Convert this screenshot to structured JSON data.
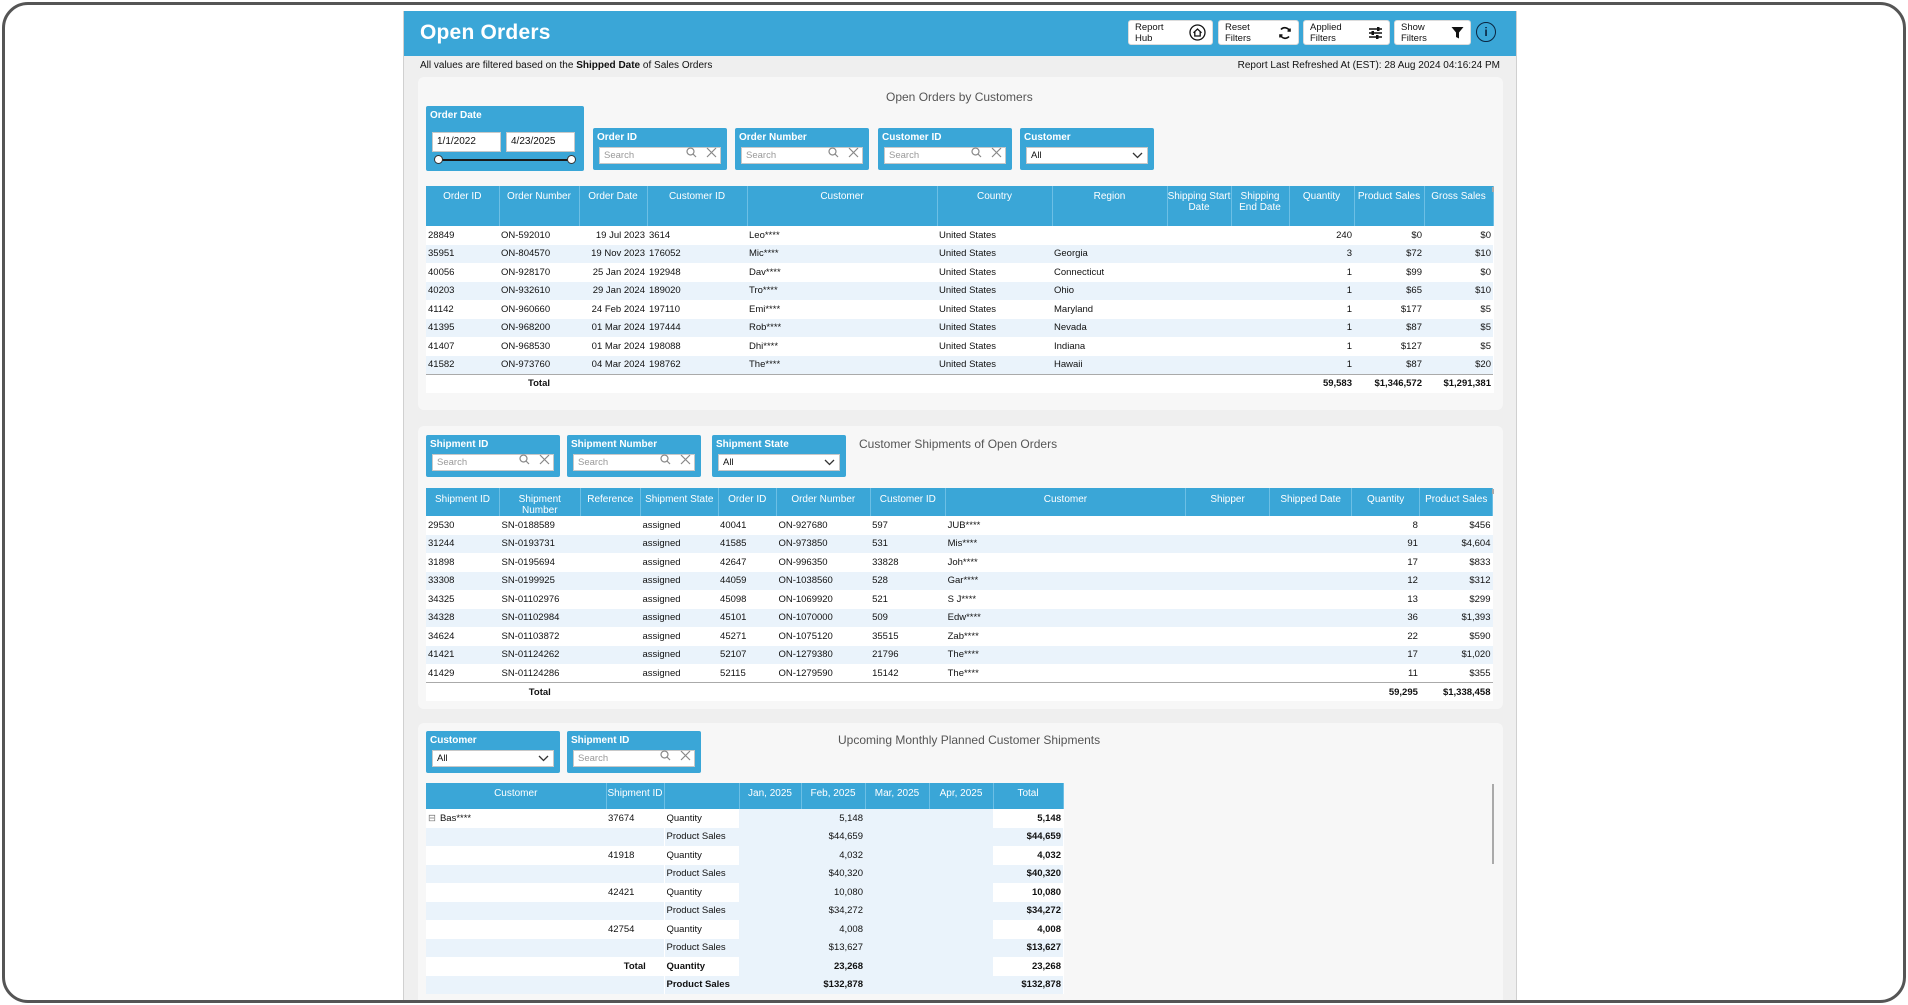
{
  "header": {
    "title": "Open Orders",
    "buttons": {
      "report_hub": "Report Hub",
      "reset_filters": "Reset Filters",
      "applied_filters": "Applied Filters",
      "show_filters": "Show Filters"
    },
    "info_glyph": "i"
  },
  "subheader": {
    "prefix": "All values are filtered based on the",
    "bold": "Shipped Date",
    "suffix": "of Sales Orders",
    "refreshed": "Report Last Refreshed At (EST): 28 Aug 2024 04:16:24 PM"
  },
  "orders_panel": {
    "title": "Open Orders by Customers",
    "slicers": {
      "order_date": {
        "label": "Order Date",
        "from": "1/1/2022",
        "to": "4/23/2025"
      },
      "order_id": {
        "label": "Order ID",
        "placeholder": "Search"
      },
      "order_number": {
        "label": "Order Number",
        "placeholder": "Search"
      },
      "customer_id": {
        "label": "Customer ID",
        "placeholder": "Search"
      },
      "customer": {
        "label": "Customer",
        "value": "All"
      }
    },
    "columns": [
      "Order ID",
      "Order Number",
      "Order Date",
      "Customer ID",
      "Customer",
      "Country",
      "Region",
      "Shipping Start Date",
      "Shipping End Date",
      "Quantity",
      "Product Sales",
      "Gross Sales"
    ],
    "rows": [
      [
        "28849",
        "ON-592010",
        "19 Jul 2023",
        "3614",
        "Leo****",
        "United States",
        "",
        "",
        "",
        "240",
        "$0",
        "$0"
      ],
      [
        "35951",
        "ON-804570",
        "19 Nov 2023",
        "176052",
        "Mic****",
        "United States",
        "Georgia",
        "",
        "",
        "3",
        "$72",
        "$10"
      ],
      [
        "40056",
        "ON-928170",
        "25 Jan 2024",
        "192948",
        "Dav****",
        "United States",
        "Connecticut",
        "",
        "",
        "1",
        "$99",
        "$0"
      ],
      [
        "40203",
        "ON-932610",
        "29 Jan 2024",
        "189020",
        "Tro****",
        "United States",
        "Ohio",
        "",
        "",
        "1",
        "$65",
        "$10"
      ],
      [
        "41142",
        "ON-960660",
        "24 Feb 2024",
        "197110",
        "Emi****",
        "United States",
        "Maryland",
        "",
        "",
        "1",
        "$177",
        "$5"
      ],
      [
        "41395",
        "ON-968200",
        "01 Mar 2024",
        "197444",
        "Rob****",
        "United States",
        "Nevada",
        "",
        "",
        "1",
        "$87",
        "$5"
      ],
      [
        "41407",
        "ON-968530",
        "01 Mar 2024",
        "198088",
        "Dhi****",
        "United States",
        "Indiana",
        "",
        "",
        "1",
        "$127",
        "$5"
      ],
      [
        "41582",
        "ON-973760",
        "04 Mar 2024",
        "198762",
        "The****",
        "United States",
        "Hawaii",
        "",
        "",
        "1",
        "$87",
        "$20"
      ]
    ],
    "total": {
      "label": "Total",
      "quantity": "59,583",
      "product_sales": "$1,346,572",
      "gross_sales": "$1,291,381"
    }
  },
  "shipments_panel": {
    "title": "Customer Shipments of Open Orders",
    "slicers": {
      "shipment_id": {
        "label": "Shipment ID",
        "placeholder": "Search"
      },
      "shipment_number": {
        "label": "Shipment Number",
        "placeholder": "Search"
      },
      "shipment_state": {
        "label": "Shipment State",
        "value": "All"
      }
    },
    "columns": [
      "Shipment ID",
      "Shipment Number",
      "Reference",
      "Shipment State",
      "Order ID",
      "Order Number",
      "Customer ID",
      "Customer",
      "Shipper",
      "Shipped Date",
      "Quantity",
      "Product Sales"
    ],
    "rows": [
      [
        "29530",
        "SN-0188589",
        "",
        "assigned",
        "40041",
        "ON-927680",
        "597",
        "JUB****",
        "",
        "",
        "8",
        "$456"
      ],
      [
        "31244",
        "SN-0193731",
        "",
        "assigned",
        "41585",
        "ON-973850",
        "531",
        "Mis****",
        "",
        "",
        "91",
        "$4,604"
      ],
      [
        "31898",
        "SN-0195694",
        "",
        "assigned",
        "42647",
        "ON-996350",
        "33828",
        "Joh****",
        "",
        "",
        "17",
        "$833"
      ],
      [
        "33308",
        "SN-0199925",
        "",
        "assigned",
        "44059",
        "ON-1038560",
        "528",
        "Gar****",
        "",
        "",
        "12",
        "$312"
      ],
      [
        "34325",
        "SN-01102976",
        "",
        "assigned",
        "45098",
        "ON-1069920",
        "521",
        "S J****",
        "",
        "",
        "13",
        "$299"
      ],
      [
        "34328",
        "SN-01102984",
        "",
        "assigned",
        "45101",
        "ON-1070000",
        "509",
        "Edw****",
        "",
        "",
        "36",
        "$1,393"
      ],
      [
        "34624",
        "SN-01103872",
        "",
        "assigned",
        "45271",
        "ON-1075120",
        "35515",
        "Zab****",
        "",
        "",
        "22",
        "$590"
      ],
      [
        "41421",
        "SN-01124262",
        "",
        "assigned",
        "52107",
        "ON-1279380",
        "21796",
        "The****",
        "",
        "",
        "17",
        "$1,020"
      ],
      [
        "41429",
        "SN-01124286",
        "",
        "assigned",
        "52115",
        "ON-1279590",
        "15142",
        "The****",
        "",
        "",
        "11",
        "$355"
      ]
    ],
    "total": {
      "label": "Total",
      "quantity": "59,295",
      "product_sales": "$1,338,458"
    }
  },
  "planned_panel": {
    "title": "Upcoming Monthly Planned Customer Shipments",
    "slicers": {
      "customer": {
        "label": "Customer",
        "value": "All"
      },
      "shipment_id": {
        "label": "Shipment ID",
        "placeholder": "Search"
      }
    },
    "columns": [
      "Customer",
      "Shipment ID",
      "",
      "Jan, 2025",
      "Feb, 2025",
      "Mar, 2025",
      "Apr, 2025",
      "Total"
    ],
    "customer": "Bas****",
    "expand_glyph": "⊟",
    "rows": [
      [
        "37674",
        "Quantity",
        "",
        "5,148",
        "",
        "",
        "5,148"
      ],
      [
        "",
        "Product Sales",
        "",
        "$44,659",
        "",
        "",
        "$44,659"
      ],
      [
        "41918",
        "Quantity",
        "",
        "4,032",
        "",
        "",
        "4,032"
      ],
      [
        "",
        "Product Sales",
        "",
        "$40,320",
        "",
        "",
        "$40,320"
      ],
      [
        "42421",
        "Quantity",
        "",
        "10,080",
        "",
        "",
        "10,080"
      ],
      [
        "",
        "Product Sales",
        "",
        "$34,272",
        "",
        "",
        "$34,272"
      ],
      [
        "42754",
        "Quantity",
        "",
        "4,008",
        "",
        "",
        "4,008"
      ],
      [
        "",
        "Product Sales",
        "",
        "$13,627",
        "",
        "",
        "$13,627"
      ]
    ],
    "totals": [
      [
        "Total",
        "Quantity",
        "",
        "23,268",
        "",
        "",
        "23,268"
      ],
      [
        "",
        "Product Sales",
        "",
        "$132,878",
        "",
        "",
        "$132,878"
      ]
    ]
  },
  "colors": {
    "accent": "#3aa6d7",
    "alt_row": "#eaf3fb",
    "panel_bg": "#f7f7f7"
  }
}
